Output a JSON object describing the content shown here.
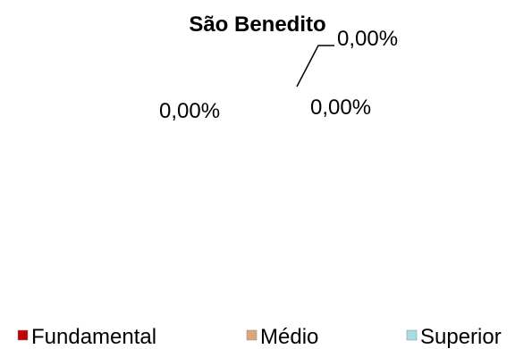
{
  "chart_data": {
    "type": "pie",
    "title": "São Benedito",
    "categories": [
      "Fundamental",
      "Médio",
      "Superior"
    ],
    "values": [
      0,
      0,
      0
    ],
    "data_labels": [
      "0,00%",
      "0,00%",
      "0,00%"
    ],
    "legend_position": "bottom",
    "colors": [
      "#c00000",
      "#d9a77a",
      "#a6dde3"
    ]
  }
}
